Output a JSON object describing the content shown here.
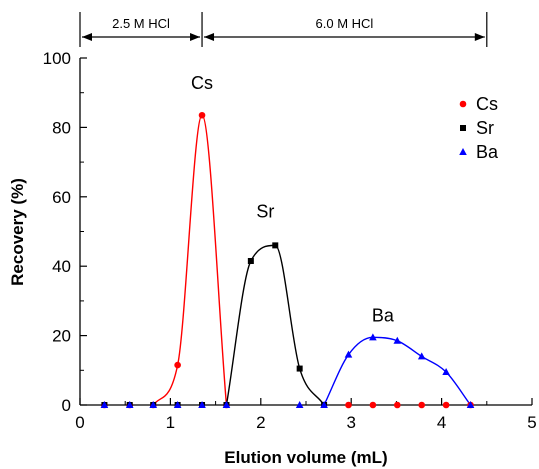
{
  "chart_data": {
    "type": "scatter",
    "xlabel": "Elution volume (mL)",
    "ylabel": "Recovery (%)",
    "xlim": [
      0,
      5
    ],
    "ylim": [
      0,
      100
    ],
    "x_ticks": [
      "0",
      "1",
      "2",
      "3",
      "4",
      "5"
    ],
    "y_ticks": [
      "0",
      "20",
      "40",
      "60",
      "80",
      "100"
    ],
    "grid": false,
    "legend_position": "top-right",
    "phases": [
      {
        "label": "2.5 M HCl",
        "x_start": 0,
        "x_end": 1.35
      },
      {
        "label": "6.0 M HCl",
        "x_start": 1.35,
        "x_end": 4.5
      }
    ],
    "series": [
      {
        "name": "Cs",
        "color": "#ff0000",
        "marker": "circle",
        "x": [
          0.27,
          0.55,
          0.81,
          1.08,
          1.35,
          1.62,
          2.97,
          3.24,
          3.51,
          3.78,
          4.05,
          4.32
        ],
        "y": [
          0,
          0,
          0,
          11.5,
          83.5,
          0,
          0,
          0,
          0,
          0,
          0,
          0
        ]
      },
      {
        "name": "Sr",
        "color": "#000000",
        "marker": "square",
        "x": [
          0.27,
          0.55,
          0.81,
          1.08,
          1.35,
          1.62,
          1.89,
          2.16,
          2.43,
          2.7
        ],
        "y": [
          0,
          0,
          0,
          0,
          0,
          0,
          41.5,
          46,
          10.5,
          0
        ]
      },
      {
        "name": "Ba",
        "color": "#0000ff",
        "marker": "triangle",
        "x": [
          0.27,
          0.55,
          0.81,
          1.08,
          1.35,
          1.62,
          2.43,
          2.7,
          2.97,
          3.24,
          3.51,
          3.78,
          4.05,
          4.32
        ],
        "y": [
          0,
          0,
          0,
          0,
          0,
          0,
          0,
          0,
          14.5,
          19.5,
          18.5,
          14,
          9.5,
          0
        ]
      }
    ],
    "curves": [
      {
        "series": "Cs",
        "color": "#ff0000",
        "x": [
          0.81,
          1.08,
          1.35,
          1.62
        ],
        "y": [
          0,
          11.5,
          83.5,
          0
        ]
      },
      {
        "series": "Sr",
        "color": "#000000",
        "x": [
          1.62,
          1.89,
          2.16,
          2.43,
          2.7
        ],
        "y": [
          0,
          41.5,
          46,
          10.5,
          0
        ]
      },
      {
        "series": "Ba",
        "color": "#0000ff",
        "x": [
          2.7,
          2.97,
          3.24,
          3.51,
          3.78,
          4.05,
          4.32
        ],
        "y": [
          0,
          14.5,
          19.5,
          18.5,
          14,
          9.5,
          0
        ]
      }
    ],
    "peak_labels": [
      {
        "text": "Cs",
        "x": 1.35,
        "y": 91
      },
      {
        "text": "Sr",
        "x": 2.05,
        "y": 54
      },
      {
        "text": "Ba",
        "x": 3.35,
        "y": 24
      }
    ]
  }
}
